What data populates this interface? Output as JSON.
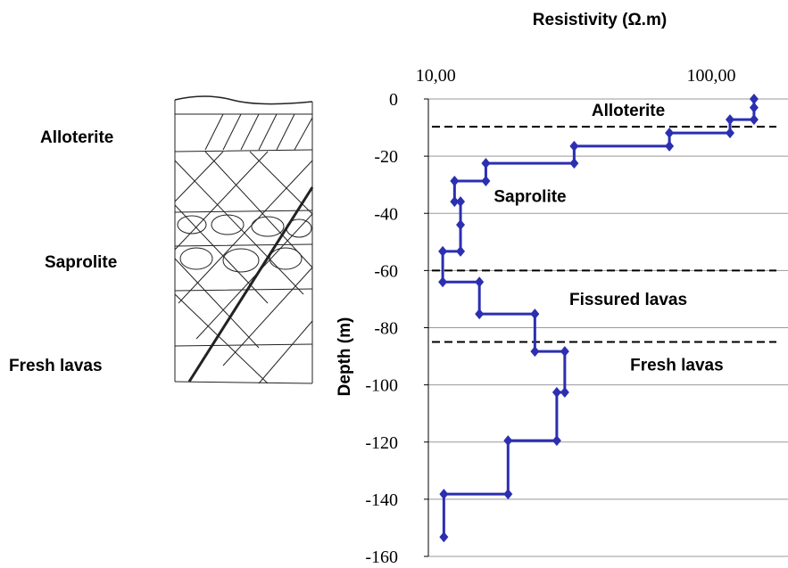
{
  "chart_data": {
    "type": "step-line",
    "title": "Resistivity (Ω.m)",
    "y_label": "Depth (m)",
    "x_scale": "log",
    "grid": true,
    "xlim": [
      9.4,
      190
    ],
    "xticks": [
      {
        "value": 10,
        "label": "10,00"
      },
      {
        "value": 100,
        "label": "100,00"
      }
    ],
    "ylim": [
      -160,
      0
    ],
    "yticks": [
      0,
      -20,
      -40,
      -60,
      -80,
      -100,
      -120,
      -140,
      -160
    ],
    "series": [
      {
        "color": "#2b2fb0",
        "x": [
          143,
          143,
          143,
          117,
          117,
          70.5,
          70.5,
          31.8,
          31.8,
          15.2,
          15.2,
          11.7,
          11.7,
          12.3,
          12.3,
          12.3,
          10.6,
          10.6,
          14.4,
          14.4,
          22.9,
          22.9,
          29.4,
          29.4,
          27.5,
          27.5,
          18.3,
          18.3,
          10.7,
          10.7
        ],
        "values": [
          0,
          -3,
          -7.2,
          -7.2,
          -11.9,
          -11.9,
          -16.5,
          -16.5,
          -22.5,
          -22.5,
          -28.7,
          -28.7,
          -35.9,
          -35.9,
          -44,
          -53.3,
          -53.3,
          -64,
          -64,
          -75.2,
          -75.2,
          -88.3,
          -88.3,
          -102.6,
          -102.6,
          -119.5,
          -119.5,
          -138.2,
          -138.2,
          -153.2
        ]
      }
    ],
    "boundaries": [
      -9.7,
      -60,
      -85
    ],
    "annotations": [
      {
        "text": "Alloterite",
        "x": 50,
        "y": -6
      },
      {
        "text": "Saprolite",
        "x": 22,
        "y": -36
      },
      {
        "text": "Fissured  lavas",
        "x": 50,
        "y": -72
      },
      {
        "text": "Fresh lavas",
        "x": 75,
        "y": -95
      }
    ]
  },
  "profile_labels": [
    "Alloterite",
    "Saprolite",
    "Fresh lavas"
  ]
}
